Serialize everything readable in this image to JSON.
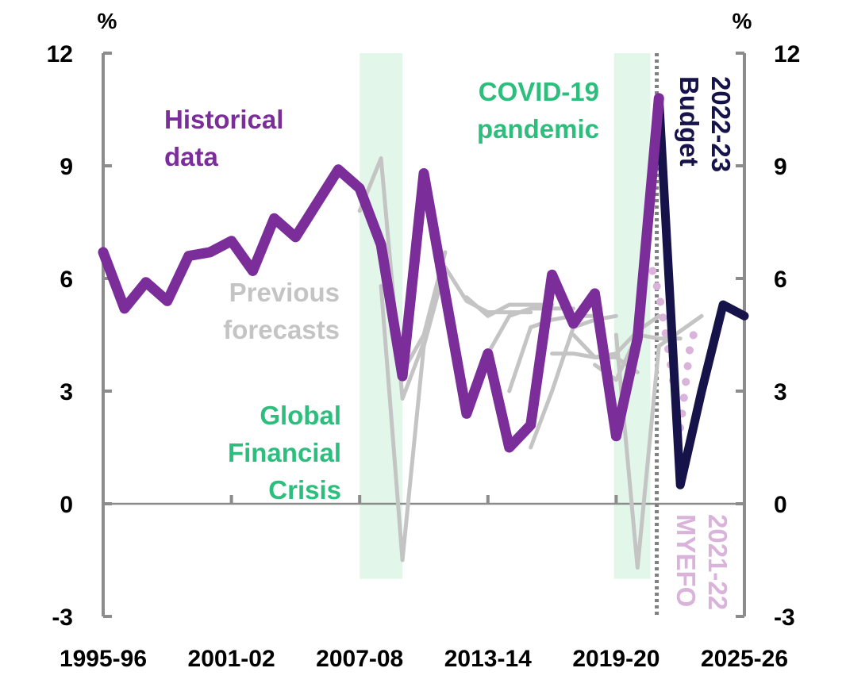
{
  "chart_data": {
    "type": "line",
    "unit_left": "%",
    "unit_right": "%",
    "x_tick_labels": [
      "1995-96",
      "2001-02",
      "2007-08",
      "2013-14",
      "2019-20",
      "2025-26"
    ],
    "x_tick_years": [
      1996,
      2002,
      2008,
      2014,
      2020,
      2026
    ],
    "xlim": [
      1996,
      2026
    ],
    "ylim": [
      -3,
      12
    ],
    "y_ticks": [
      -3,
      0,
      3,
      6,
      9,
      12
    ],
    "y_tick_labels": [
      "-3",
      "0",
      "3",
      "6",
      "9",
      "12"
    ],
    "shaded_periods": [
      {
        "start": 2008.0,
        "end": 2010.0,
        "label": "Global Financial Crisis",
        "label_lines": [
          "Global",
          "Financial",
          "Crisis"
        ]
      },
      {
        "start": 2019.9,
        "end": 2021.6,
        "label": "COVID-19 pandemic",
        "label_lines": [
          "COVID-19",
          "pandemic"
        ]
      }
    ],
    "budget_marker": {
      "x": 2021.9,
      "label_lines": [
        "2022-23",
        "Budget"
      ]
    },
    "myefo_label_lines": [
      "2021-22",
      "MYEFO"
    ],
    "annotations": {
      "historical_lines": [
        "Historical",
        "data"
      ],
      "previous_lines": [
        "Previous",
        "forecasts"
      ]
    },
    "colors": {
      "historical": "#7B2D9A",
      "budget": "#16124A",
      "myefo": "#D9B3D9",
      "previous": "#C4C4C4",
      "shading": "#E2F7EA",
      "shading_text": "#2DBE7E",
      "axis": "#8C8C8C"
    },
    "series": [
      {
        "name": "Historical data",
        "style": "historical",
        "x": [
          1996,
          1997,
          1998,
          1999,
          2000,
          2001,
          2002,
          2003,
          2004,
          2005,
          2006,
          2007,
          2008,
          2009,
          2010,
          2011,
          2012,
          2013,
          2014,
          2015,
          2016,
          2017,
          2018,
          2019,
          2020,
          2021,
          2022
        ],
        "y": [
          6.7,
          5.2,
          5.9,
          5.4,
          6.6,
          6.7,
          7.0,
          6.2,
          7.6,
          7.1,
          8.0,
          8.9,
          8.4,
          6.9,
          3.4,
          8.8,
          5.6,
          2.4,
          4.0,
          1.5,
          2.1,
          6.1,
          4.8,
          5.6,
          1.8,
          4.4,
          10.8
        ]
      },
      {
        "name": "2022-23 Budget",
        "style": "budget",
        "x": [
          2022,
          2023,
          2024,
          2025,
          2026
        ],
        "y": [
          10.8,
          0.5,
          3.0,
          5.3,
          5.0
        ]
      },
      {
        "name": "2021-22 MYEFO",
        "style": "myefo",
        "x": [
          2021.7,
          2022,
          2022.5,
          2023,
          2023.5,
          2024
        ],
        "y": [
          6.2,
          5.6,
          3.9,
          2.0,
          4.4,
          4.8
        ]
      },
      {
        "style": "previous",
        "x": [
          2008,
          2009,
          2010,
          2011
        ],
        "y": [
          7.8,
          9.2,
          2.8,
          4.3
        ]
      },
      {
        "style": "previous",
        "x": [
          2009,
          2010,
          2011,
          2012
        ],
        "y": [
          5.8,
          -1.5,
          4.2,
          6.3
        ]
      },
      {
        "style": "previous",
        "x": [
          2010,
          2011,
          2012
        ],
        "y": [
          3.5,
          4.5,
          6.7
        ]
      },
      {
        "style": "previous",
        "x": [
          2012,
          2013,
          2014,
          2015,
          2016
        ],
        "y": [
          6.3,
          5.4,
          5.1,
          5.1,
          5.1
        ]
      },
      {
        "style": "previous",
        "x": [
          2013,
          2014,
          2015,
          2016,
          2017
        ],
        "y": [
          5.5,
          5.0,
          5.3,
          5.3,
          5.3
        ]
      },
      {
        "style": "previous",
        "x": [
          2014,
          2015,
          2016,
          2017,
          2018
        ],
        "y": [
          4.0,
          5.0,
          5.2,
          5.2,
          5.2
        ]
      },
      {
        "style": "previous",
        "x": [
          2015,
          2016,
          2017,
          2018,
          2019
        ],
        "y": [
          3.0,
          4.7,
          4.9,
          5.0,
          5.0
        ]
      },
      {
        "style": "previous",
        "x": [
          2016,
          2017,
          2018,
          2019,
          2020
        ],
        "y": [
          1.5,
          3.0,
          4.7,
          4.9,
          5.0
        ]
      },
      {
        "style": "previous",
        "x": [
          2017,
          2018,
          2019,
          2020,
          2021
        ],
        "y": [
          4.0,
          4.0,
          3.9,
          3.9,
          3.5
        ]
      },
      {
        "style": "previous",
        "x": [
          2018,
          2019,
          2020,
          2021,
          2022
        ],
        "y": [
          4.5,
          3.9,
          4.0,
          4.6,
          5.0
        ]
      },
      {
        "style": "previous",
        "x": [
          2019,
          2020,
          2021,
          2022,
          2023
        ],
        "y": [
          3.7,
          3.3,
          4.5,
          4.4,
          4.4
        ]
      },
      {
        "style": "previous",
        "x": [
          2020,
          2021,
          2022,
          2023,
          2024
        ],
        "y": [
          4.5,
          -1.7,
          4.2,
          4.6,
          5.0
        ]
      }
    ]
  }
}
